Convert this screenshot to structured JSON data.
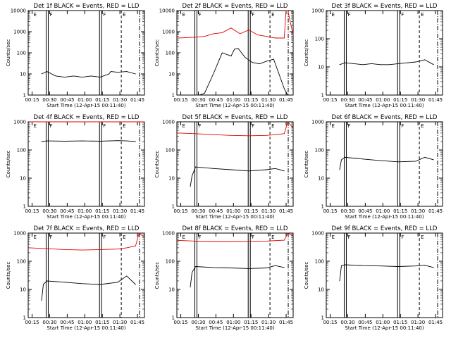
{
  "colors": {
    "events": "#000000",
    "lld": "#e00000",
    "axes": "#000000",
    "background": "#ffffff"
  },
  "x_ticks": [
    "00:15",
    "00:30",
    "00:45",
    "01:00",
    "01:15",
    "01:30",
    "01:45"
  ],
  "y_ticks": [
    "1",
    "10",
    "100",
    "1000"
  ],
  "y_ticks_p1": [
    "1",
    "10",
    "100",
    "1000",
    "10000"
  ],
  "chart_data": [
    {
      "type": "line",
      "title": "Det 1f BLACK = Events, RED = LLD",
      "xlabel": "Start Time (12-Apr-15 00:11:40)",
      "ylabel": "Counts/sec",
      "y_scale": "log",
      "xlim": [
        0.1944,
        0.85
      ],
      "ylim": [
        1,
        10000
      ],
      "marker_labels": [
        "E",
        "F",
        "F",
        "E"
      ],
      "series": [
        {
          "color": "black",
          "x": [
            0.27,
            0.3,
            0.35,
            0.4,
            0.45,
            0.5,
            0.55,
            0.6,
            0.65,
            0.66,
            0.7,
            0.75,
            0.8
          ],
          "y": [
            10,
            13,
            8,
            7,
            8,
            7,
            8,
            7,
            10,
            13,
            12,
            13,
            10
          ]
        },
        {
          "color": "red",
          "x": [],
          "y": []
        }
      ]
    },
    {
      "type": "line",
      "title": "Det 2f BLACK = Events, RED = LLD",
      "xlabel": "Start Time (12-Apr-15 00:11:40)",
      "ylabel": "Counts/sec",
      "y_scale": "log",
      "xlim": [
        0.1944,
        0.85
      ],
      "ylim": [
        1,
        10000
      ],
      "marker_labels": [
        "E",
        "F",
        "F",
        "E"
      ],
      "series": [
        {
          "color": "black",
          "x": [
            0.27,
            0.32,
            0.35,
            0.4,
            0.43,
            0.45,
            0.5,
            0.52,
            0.54,
            0.58,
            0.62,
            0.66,
            0.7,
            0.74,
            0.8,
            0.82
          ],
          "y": [
            1,
            1,
            1.2,
            10,
            40,
            100,
            70,
            150,
            160,
            60,
            35,
            30,
            40,
            50,
            2,
            1
          ]
        },
        {
          "color": "red",
          "x": [
            0.2,
            0.3,
            0.35,
            0.4,
            0.45,
            0.5,
            0.55,
            0.6,
            0.65,
            0.7,
            0.75,
            0.8,
            0.81,
            0.82,
            0.85
          ],
          "y": [
            500,
            550,
            600,
            800,
            900,
            1500,
            800,
            1200,
            700,
            600,
            500,
            500,
            10000,
            10000,
            700
          ]
        }
      ]
    },
    {
      "type": "line",
      "title": "Det 3f BLACK = Events, RED = LLD",
      "xlabel": "Start Time (12-Apr-15 00:11:40)",
      "ylabel": "Counts/sec",
      "y_scale": "log",
      "xlim": [
        0.1944,
        0.85
      ],
      "ylim": [
        1,
        1000
      ],
      "marker_labels": [
        "E",
        "F",
        "F",
        "E"
      ],
      "series": [
        {
          "color": "black",
          "x": [
            0.27,
            0.3,
            0.35,
            0.4,
            0.45,
            0.5,
            0.55,
            0.6,
            0.65,
            0.7,
            0.75,
            0.8
          ],
          "y": [
            12,
            14,
            13,
            12,
            13,
            12,
            12,
            13,
            14,
            15,
            18,
            12
          ]
        },
        {
          "color": "red",
          "x": [],
          "y": []
        }
      ]
    },
    {
      "type": "line",
      "title": "Det 4f BLACK = Events, RED = LLD",
      "xlabel": "Start Time (12-Apr-15 00:11:40)",
      "ylabel": "Counts/sec",
      "y_scale": "log",
      "xlim": [
        0.1944,
        0.85
      ],
      "ylim": [
        1,
        1000
      ],
      "marker_labels": [
        "E",
        "F",
        "F",
        "E"
      ],
      "series": [
        {
          "color": "black",
          "x": [
            0.27,
            0.3,
            0.4,
            0.5,
            0.6,
            0.7,
            0.75,
            0.8
          ],
          "y": [
            200,
            210,
            205,
            210,
            205,
            215,
            210,
            200
          ]
        },
        {
          "color": "red",
          "x": [
            0.2,
            0.3,
            0.4,
            0.5,
            0.6,
            0.7,
            0.75,
            0.8,
            0.85
          ],
          "y": [
            1000,
            1000,
            1000,
            1000,
            1000,
            1000,
            1000,
            1000,
            1000
          ]
        }
      ]
    },
    {
      "type": "line",
      "title": "Det 5f BLACK = Events, RED = LLD",
      "xlabel": "Start Time (12-Apr-15 00:11:40)",
      "ylabel": "Counts/sec",
      "y_scale": "log",
      "xlim": [
        0.1944,
        0.85
      ],
      "ylim": [
        1,
        1000
      ],
      "marker_labels": [
        "E",
        "F",
        "F",
        "E"
      ],
      "series": [
        {
          "color": "black",
          "x": [
            0.27,
            0.28,
            0.3,
            0.4,
            0.5,
            0.6,
            0.7,
            0.75,
            0.8
          ],
          "y": [
            5,
            12,
            25,
            22,
            20,
            18,
            20,
            22,
            18
          ]
        },
        {
          "color": "red",
          "x": [
            0.2,
            0.3,
            0.4,
            0.5,
            0.6,
            0.7,
            0.75,
            0.8,
            0.82,
            0.85
          ],
          "y": [
            400,
            380,
            350,
            330,
            320,
            330,
            350,
            380,
            1000,
            600
          ]
        }
      ]
    },
    {
      "type": "line",
      "title": "Det 6f BLACK = Events, RED = LLD",
      "xlabel": "Start Time (12-Apr-15 00:11:40)",
      "ylabel": "Counts/sec",
      "y_scale": "log",
      "xlim": [
        0.1944,
        0.85
      ],
      "ylim": [
        1,
        1000
      ],
      "marker_labels": [
        "E",
        "F",
        "F",
        "E"
      ],
      "series": [
        {
          "color": "black",
          "x": [
            0.27,
            0.28,
            0.3,
            0.4,
            0.5,
            0.6,
            0.7,
            0.75,
            0.8
          ],
          "y": [
            20,
            45,
            55,
            48,
            42,
            38,
            40,
            55,
            45
          ]
        },
        {
          "color": "red",
          "x": [],
          "y": []
        }
      ]
    },
    {
      "type": "line",
      "title": "Det 7f BLACK = Events, RED = LLD",
      "xlabel": "Start Time (12-Apr-15 00:11:40)",
      "ylabel": "Counts/sec",
      "y_scale": "log",
      "xlim": [
        0.1944,
        0.85
      ],
      "ylim": [
        1,
        1000
      ],
      "marker_labels": [
        "E",
        "F",
        "F",
        "E"
      ],
      "series": [
        {
          "color": "black",
          "x": [
            0.27,
            0.28,
            0.3,
            0.4,
            0.5,
            0.6,
            0.7,
            0.75,
            0.8
          ],
          "y": [
            4,
            15,
            20,
            18,
            16,
            15,
            18,
            30,
            15
          ]
        },
        {
          "color": "red",
          "x": [
            0.2,
            0.3,
            0.4,
            0.5,
            0.6,
            0.7,
            0.75,
            0.8,
            0.82,
            0.85
          ],
          "y": [
            300,
            280,
            260,
            250,
            260,
            270,
            300,
            350,
            1000,
            700
          ]
        }
      ]
    },
    {
      "type": "line",
      "title": "Det 8f BLACK = Events, RED = LLD",
      "xlabel": "Start Time (12-Apr-15 00:11:40)",
      "ylabel": "Counts/sec",
      "y_scale": "log",
      "xlim": [
        0.1944,
        0.85
      ],
      "ylim": [
        1,
        1000
      ],
      "marker_labels": [
        "E",
        "F",
        "F",
        "E"
      ],
      "series": [
        {
          "color": "black",
          "x": [
            0.27,
            0.28,
            0.3,
            0.4,
            0.5,
            0.6,
            0.7,
            0.75,
            0.8
          ],
          "y": [
            12,
            40,
            65,
            60,
            58,
            55,
            58,
            70,
            60
          ]
        },
        {
          "color": "red",
          "x": [
            0.2,
            0.3,
            0.4,
            0.5,
            0.6,
            0.7,
            0.75,
            0.8,
            0.82,
            0.85
          ],
          "y": [
            550,
            520,
            500,
            500,
            510,
            520,
            540,
            560,
            1000,
            800
          ]
        }
      ]
    },
    {
      "type": "line",
      "title": "Det 9f BLACK = Events, RED = LLD",
      "xlabel": "Start Time (12-Apr-15 00:11:40)",
      "ylabel": "Counts/sec",
      "y_scale": "log",
      "xlim": [
        0.1944,
        0.85
      ],
      "ylim": [
        1,
        1000
      ],
      "marker_labels": [
        "E",
        "F",
        "F",
        "E"
      ],
      "series": [
        {
          "color": "black",
          "x": [
            0.27,
            0.28,
            0.3,
            0.4,
            0.5,
            0.6,
            0.7,
            0.75,
            0.8
          ],
          "y": [
            20,
            70,
            75,
            70,
            68,
            65,
            68,
            72,
            60
          ]
        },
        {
          "color": "red",
          "x": [],
          "y": []
        }
      ]
    }
  ]
}
